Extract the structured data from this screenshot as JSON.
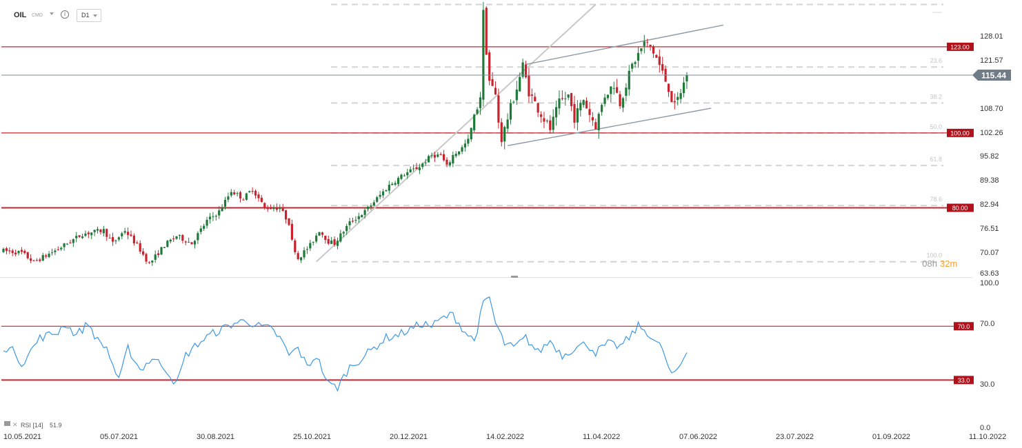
{
  "header": {
    "symbol": "OIL",
    "type": "CMD",
    "timeframe": "D1"
  },
  "colors": {
    "bull": "#1f7a3a",
    "bear": "#c8232c",
    "level_line": "#c8232c",
    "level_bg": "#b0111b",
    "fib_line": "#d4d4d4",
    "channel_line": "#8d98a6",
    "trend_line": "#c8c8c8",
    "price_line": "#7b8794",
    "price_tag_bg": "#6f7b87",
    "rsi_line": "#3c98e6",
    "countdown_hours": "#9a9a9a",
    "countdown_minutes": "#f0a030"
  },
  "chart_data": {
    "type": "candlestick",
    "instrument": "OIL",
    "timeframe": "D1",
    "x_labels": [
      "10.05.2021",
      "05.07.2021",
      "30.08.2021",
      "25.10.2021",
      "20.12.2021",
      "14.02.2022",
      "11.04.2022",
      "07.06.2022",
      "23.07.2022",
      "01.09.2022",
      "11.10.2022"
    ],
    "y_ticks": [
      "128.01",
      "121.57",
      "115.44",
      "108.70",
      "102.26",
      "95.82",
      "89.38",
      "82.94",
      "76.51",
      "70.07",
      "63.63"
    ],
    "y_range": [
      61.5,
      135.5
    ],
    "current_price": 115.44,
    "price_label": "115.44",
    "price_path": [
      [
        0,
        68.5
      ],
      [
        6,
        68
      ],
      [
        10,
        65.5
      ],
      [
        18,
        69
      ],
      [
        26,
        73
      ],
      [
        33,
        74
      ],
      [
        36,
        70.5
      ],
      [
        40,
        74
      ],
      [
        44,
        70
      ],
      [
        48,
        65
      ],
      [
        53,
        70
      ],
      [
        57,
        72.5
      ],
      [
        62,
        70.5
      ],
      [
        67,
        76.5
      ],
      [
        71,
        79
      ],
      [
        75,
        84.5
      ],
      [
        79,
        82.5
      ],
      [
        82,
        85
      ],
      [
        86,
        80
      ],
      [
        91,
        80
      ],
      [
        94,
        76
      ],
      [
        95,
        71
      ],
      [
        97,
        66.5
      ],
      [
        101,
        70
      ],
      [
        104,
        74
      ],
      [
        107,
        71
      ],
      [
        109,
        70.5
      ],
      [
        114,
        76
      ],
      [
        119,
        79
      ],
      [
        127,
        86
      ],
      [
        132,
        89
      ],
      [
        137,
        91
      ],
      [
        141,
        94
      ],
      [
        144,
        94
      ],
      [
        146,
        91
      ],
      [
        148,
        94
      ],
      [
        151,
        96
      ],
      [
        153,
        98
      ],
      [
        157,
        110
      ],
      [
        158,
        132
      ],
      [
        159,
        122
      ],
      [
        160,
        114
      ],
      [
        162,
        110
      ],
      [
        163,
        103
      ],
      [
        164,
        98
      ],
      [
        166,
        104
      ],
      [
        169,
        112
      ],
      [
        171,
        118
      ],
      [
        173,
        111
      ],
      [
        175,
        108
      ],
      [
        177,
        105
      ],
      [
        180,
        101
      ],
      [
        183,
        108
      ],
      [
        186,
        110
      ],
      [
        188,
        104
      ],
      [
        191,
        109
      ],
      [
        193,
        105
      ],
      [
        195,
        102
      ],
      [
        198,
        110
      ],
      [
        201,
        113
      ],
      [
        203,
        108
      ],
      [
        205,
        113
      ],
      [
        207,
        118
      ],
      [
        209,
        121
      ],
      [
        211,
        124
      ],
      [
        213,
        123
      ],
      [
        215,
        120
      ],
      [
        217,
        116
      ],
      [
        219,
        112
      ],
      [
        220,
        109
      ],
      [
        221,
        107
      ],
      [
        223,
        111
      ],
      [
        225,
        115.44
      ]
    ],
    "horizontal_levels": [
      {
        "label": "123.00",
        "value": 123.0
      },
      {
        "label": "100.00",
        "value": 100.0
      },
      {
        "label": "80.00",
        "value": 80.0
      }
    ],
    "fibonacci": [
      {
        "label": "",
        "value": 134.3
      },
      {
        "label": "23.6",
        "value": 117.6
      },
      {
        "label": "38.2",
        "value": 108.0
      },
      {
        "label": "50.0",
        "value": 100.0
      },
      {
        "label": "61.8",
        "value": 91.3
      },
      {
        "label": "78.6",
        "value": 80.6
      },
      {
        "label": "100.0",
        "value": 65.6
      }
    ],
    "channel": {
      "upper": [
        [
          172,
          118.3
        ],
        [
          237,
          128.8
        ]
      ],
      "lower": [
        [
          166,
          96.6
        ],
        [
          233,
          106.6
        ]
      ]
    },
    "trendline": [
      [
        103,
        65.6
      ],
      [
        195,
        134.3
      ]
    ],
    "countdown": {
      "hours": "08h",
      "minutes": "32m"
    }
  },
  "rsi": {
    "title": "RSI [14]",
    "value": "51.9",
    "y_ticks": [
      "100.0",
      "70.0",
      "30.0",
      "0.0"
    ],
    "levels": [
      {
        "label": "70.0",
        "value": 70
      },
      {
        "label": "33.0",
        "value": 33
      }
    ],
    "path": [
      [
        0,
        56
      ],
      [
        4,
        52
      ],
      [
        6,
        44
      ],
      [
        12,
        62
      ],
      [
        18,
        66
      ],
      [
        20,
        72
      ],
      [
        24,
        64
      ],
      [
        28,
        72
      ],
      [
        31,
        60
      ],
      [
        34,
        55
      ],
      [
        38,
        32
      ],
      [
        41,
        55
      ],
      [
        45,
        40
      ],
      [
        49,
        48
      ],
      [
        53,
        42
      ],
      [
        57,
        30
      ],
      [
        60,
        50
      ],
      [
        64,
        58
      ],
      [
        68,
        64
      ],
      [
        72,
        68
      ],
      [
        76,
        72
      ],
      [
        80,
        74
      ],
      [
        84,
        70
      ],
      [
        88,
        68
      ],
      [
        91,
        62
      ],
      [
        94,
        50
      ],
      [
        97,
        55
      ],
      [
        100,
        42
      ],
      [
        103,
        50
      ],
      [
        107,
        30
      ],
      [
        110,
        28
      ],
      [
        114,
        42
      ],
      [
        118,
        48
      ],
      [
        122,
        55
      ],
      [
        126,
        62
      ],
      [
        130,
        64
      ],
      [
        134,
        68
      ],
      [
        138,
        72
      ],
      [
        141,
        70
      ],
      [
        145,
        76
      ],
      [
        148,
        78
      ],
      [
        152,
        66
      ],
      [
        155,
        60
      ],
      [
        158,
        85
      ],
      [
        160,
        90
      ],
      [
        162,
        72
      ],
      [
        165,
        58
      ],
      [
        168,
        55
      ],
      [
        172,
        62
      ],
      [
        176,
        52
      ],
      [
        180,
        60
      ],
      [
        184,
        50
      ],
      [
        188,
        55
      ],
      [
        192,
        58
      ],
      [
        195,
        52
      ],
      [
        199,
        58
      ],
      [
        203,
        56
      ],
      [
        206,
        62
      ],
      [
        209,
        70
      ],
      [
        212,
        66
      ],
      [
        215,
        58
      ],
      [
        217,
        55
      ],
      [
        219,
        40
      ],
      [
        221,
        36
      ],
      [
        225,
        51.9
      ]
    ]
  }
}
